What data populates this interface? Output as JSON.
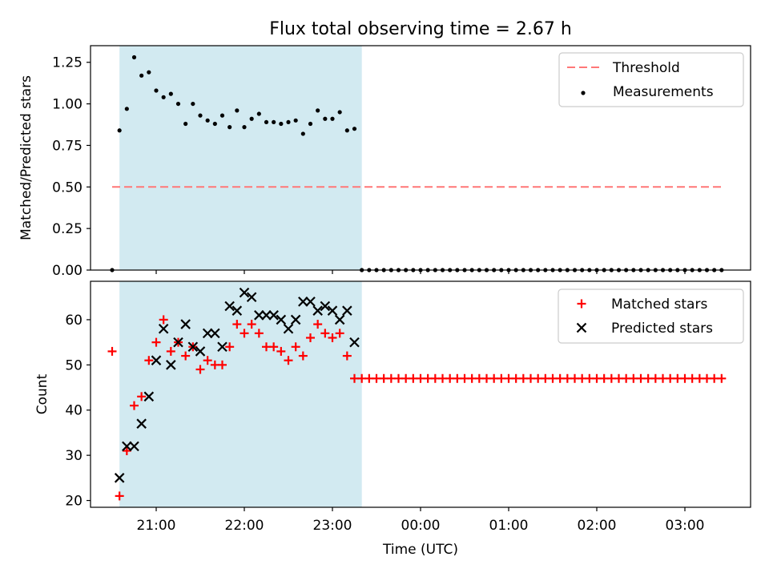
{
  "title": "Flux total observing time = 2.67 h",
  "xlabel": "Time (UTC)",
  "x_ticks": [
    "21:00",
    "22:00",
    "23:00",
    "00:00",
    "01:00",
    "02:00",
    "03:00"
  ],
  "colors": {
    "observing_span": "#add8e6",
    "threshold": "#ff7777",
    "measurements": "#000000",
    "matched": "#ff0000",
    "predicted": "#000000"
  },
  "chart_data": [
    {
      "type": "scatter",
      "ylabel": "Matched/Predicted stars",
      "ylim": [
        0,
        1.35
      ],
      "y_ticks": [
        "0.00",
        "0.25",
        "0.50",
        "0.75",
        "1.00",
        "1.25"
      ],
      "legend": [
        "Threshold",
        "Measurements"
      ],
      "legend_position": "top-right",
      "highlight_span": {
        "x_start": "20:35",
        "x_end": "23:20"
      },
      "threshold": {
        "name": "Threshold",
        "y": 0.5,
        "x_start": "20:30",
        "x_end": "03:25"
      },
      "series": [
        {
          "name": "Measurements",
          "x": [
            "20:30",
            "20:35",
            "20:40",
            "20:45",
            "20:50",
            "20:55",
            "21:00",
            "21:05",
            "21:10",
            "21:15",
            "21:20",
            "21:25",
            "21:30",
            "21:35",
            "21:40",
            "21:45",
            "21:50",
            "21:55",
            "22:00",
            "22:05",
            "22:10",
            "22:15",
            "22:20",
            "22:25",
            "22:30",
            "22:35",
            "22:40",
            "22:45",
            "22:50",
            "22:55",
            "23:00",
            "23:05",
            "23:10",
            "23:15",
            "23:20",
            "23:25",
            "23:30",
            "23:35",
            "23:40",
            "23:45",
            "23:50",
            "23:55",
            "00:00",
            "00:05",
            "00:10",
            "00:15",
            "00:20",
            "00:25",
            "00:30",
            "00:35",
            "00:40",
            "00:45",
            "00:50",
            "00:55",
            "01:00",
            "01:05",
            "01:10",
            "01:15",
            "01:20",
            "01:25",
            "01:30",
            "01:35",
            "01:40",
            "01:45",
            "01:50",
            "01:55",
            "02:00",
            "02:05",
            "02:10",
            "02:15",
            "02:20",
            "02:25",
            "02:30",
            "02:35",
            "02:40",
            "02:45",
            "02:50",
            "02:55",
            "03:00",
            "03:05",
            "03:10",
            "03:15",
            "03:20",
            "03:25"
          ],
          "y": [
            0.0,
            0.84,
            0.97,
            1.28,
            1.17,
            1.19,
            1.08,
            1.04,
            1.06,
            1.0,
            0.88,
            1.0,
            0.93,
            0.9,
            0.88,
            0.93,
            0.86,
            0.96,
            0.86,
            0.91,
            0.94,
            0.89,
            0.89,
            0.88,
            0.89,
            0.9,
            0.82,
            0.88,
            0.96,
            0.91,
            0.91,
            0.95,
            0.84,
            0.85,
            0.0,
            0.0,
            0.0,
            0.0,
            0.0,
            0.0,
            0.0,
            0.0,
            0.0,
            0.0,
            0.0,
            0.0,
            0.0,
            0.0,
            0.0,
            0.0,
            0.0,
            0.0,
            0.0,
            0.0,
            0.0,
            0.0,
            0.0,
            0.0,
            0.0,
            0.0,
            0.0,
            0.0,
            0.0,
            0.0,
            0.0,
            0.0,
            0.0,
            0.0,
            0.0,
            0.0,
            0.0,
            0.0,
            0.0,
            0.0,
            0.0,
            0.0,
            0.0,
            0.0,
            0.0,
            0.0,
            0.0,
            0.0,
            0.0,
            0.0
          ]
        }
      ]
    },
    {
      "type": "scatter",
      "ylabel": "Count",
      "ylim": [
        18.5,
        68.5
      ],
      "y_ticks": [
        "20",
        "30",
        "40",
        "50",
        "60"
      ],
      "legend": [
        "Matched stars",
        "Predicted stars"
      ],
      "legend_position": "top-right",
      "highlight_span": {
        "x_start": "20:35",
        "x_end": "23:20"
      },
      "series": [
        {
          "name": "Matched stars",
          "x": [
            "20:30",
            "20:35",
            "20:40",
            "20:45",
            "20:50",
            "20:55",
            "21:00",
            "21:05",
            "21:10",
            "21:15",
            "21:20",
            "21:25",
            "21:30",
            "21:35",
            "21:40",
            "21:45",
            "21:50",
            "21:55",
            "22:00",
            "22:05",
            "22:10",
            "22:15",
            "22:20",
            "22:25",
            "22:30",
            "22:35",
            "22:40",
            "22:45",
            "22:50",
            "22:55",
            "23:00",
            "23:05",
            "23:10",
            "23:15",
            "23:20",
            "23:25",
            "23:30",
            "23:35",
            "23:40",
            "23:45",
            "23:50",
            "23:55",
            "00:00",
            "00:05",
            "00:10",
            "00:15",
            "00:20",
            "00:25",
            "00:30",
            "00:35",
            "00:40",
            "00:45",
            "00:50",
            "00:55",
            "01:00",
            "01:05",
            "01:10",
            "01:15",
            "01:20",
            "01:25",
            "01:30",
            "01:35",
            "01:40",
            "01:45",
            "01:50",
            "01:55",
            "02:00",
            "02:05",
            "02:10",
            "02:15",
            "02:20",
            "02:25",
            "02:30",
            "02:35",
            "02:40",
            "02:45",
            "02:50",
            "02:55",
            "03:00",
            "03:05",
            "03:10",
            "03:15",
            "03:20",
            "03:25"
          ],
          "y": [
            53,
            21,
            31,
            41,
            43,
            51,
            55,
            60,
            53,
            55,
            52,
            54,
            49,
            51,
            50,
            50,
            54,
            59,
            57,
            59,
            57,
            54,
            54,
            53,
            51,
            54,
            52,
            56,
            59,
            57,
            56,
            57,
            52,
            47,
            47,
            47,
            47,
            47,
            47,
            47,
            47,
            47,
            47,
            47,
            47,
            47,
            47,
            47,
            47,
            47,
            47,
            47,
            47,
            47,
            47,
            47,
            47,
            47,
            47,
            47,
            47,
            47,
            47,
            47,
            47,
            47,
            47,
            47,
            47,
            47,
            47,
            47,
            47,
            47,
            47,
            47,
            47,
            47,
            47,
            47,
            47,
            47,
            47,
            47
          ]
        },
        {
          "name": "Predicted stars",
          "x": [
            "20:35",
            "20:40",
            "20:45",
            "20:50",
            "20:55",
            "21:00",
            "21:05",
            "21:10",
            "21:15",
            "21:20",
            "21:25",
            "21:30",
            "21:35",
            "21:40",
            "21:45",
            "21:50",
            "21:55",
            "22:00",
            "22:05",
            "22:10",
            "22:15",
            "22:20",
            "22:25",
            "22:30",
            "22:35",
            "22:40",
            "22:45",
            "22:50",
            "22:55",
            "23:00",
            "23:05",
            "23:10",
            "23:15"
          ],
          "y": [
            25,
            32,
            32,
            37,
            43,
            51,
            58,
            50,
            55,
            59,
            54,
            53,
            57,
            57,
            54,
            63,
            62,
            66,
            65,
            61,
            61,
            61,
            60,
            58,
            60,
            64,
            64,
            62,
            63,
            62,
            60,
            62,
            55
          ]
        }
      ]
    }
  ]
}
